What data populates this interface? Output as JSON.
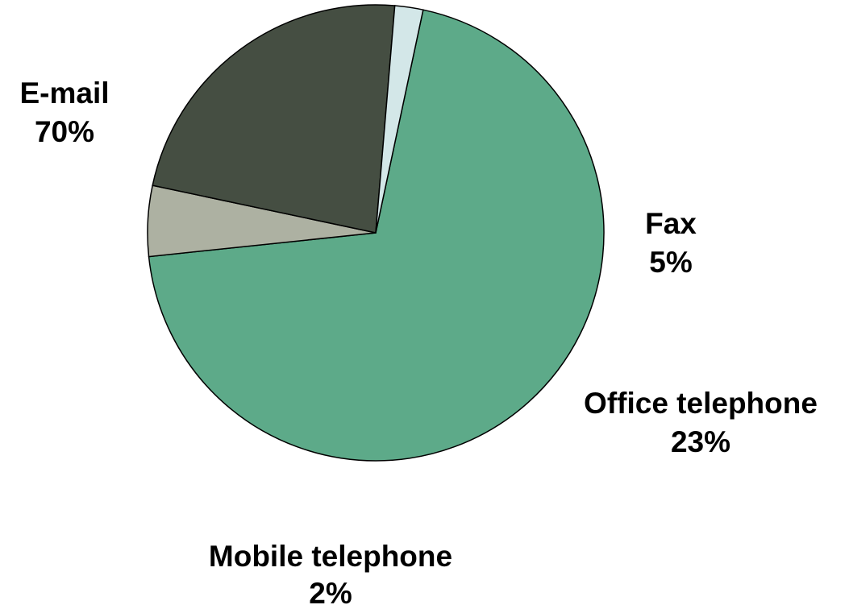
{
  "chart_data": {
    "type": "pie",
    "categories": [
      "E-mail",
      "Fax",
      "Office telephone",
      "Mobile telephone"
    ],
    "values": [
      70,
      5,
      23,
      2
    ],
    "value_labels": [
      "70%",
      "5%",
      "23%",
      "2%"
    ],
    "colors": [
      "#5daa89",
      "#adb1a2",
      "#454e42",
      "#d3e7e8"
    ],
    "start_angle_deg": -78,
    "direction": "clockwise"
  }
}
